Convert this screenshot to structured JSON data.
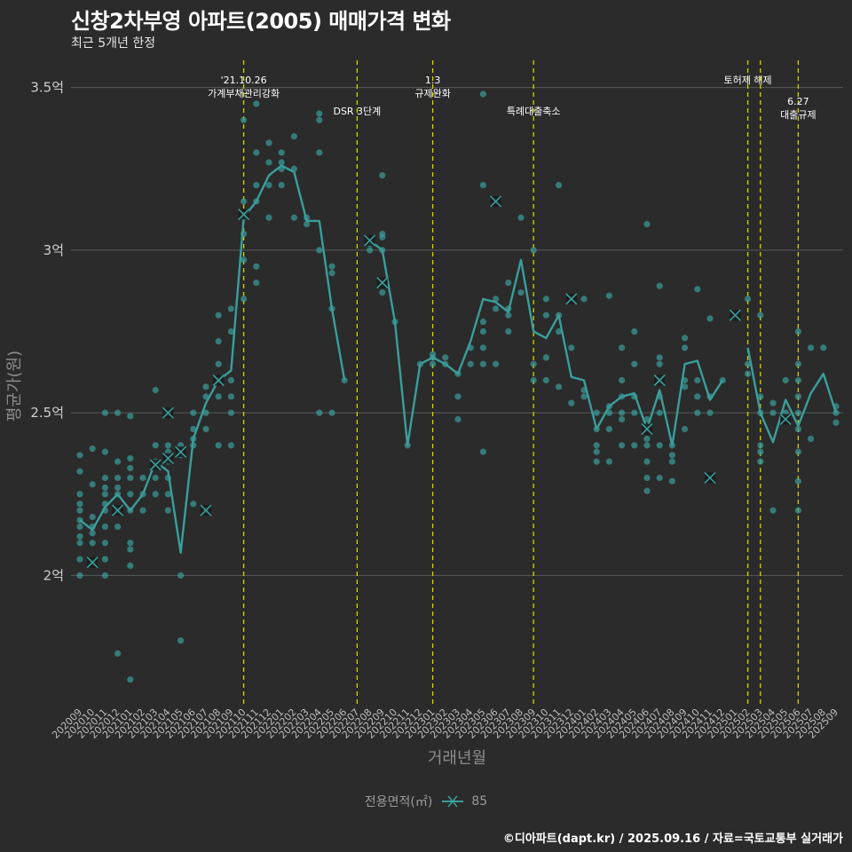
{
  "title": "신창2차부영 아파트(2005) 매매가격 변화",
  "subtitle": "최근 5개년 한정",
  "footer": "©디아파트(dapt.kr) / 2025.09.16 / 자료=국토교통부 실거래가",
  "legend": {
    "title": "전용면적(㎡)",
    "item": "85"
  },
  "colors": {
    "background": "#2b2b2b",
    "line": "#3a9e9b",
    "point": "#3a9e9b",
    "event_line": "#d4d400",
    "grid": "#5a5a5a"
  },
  "chart_data": {
    "type": "line",
    "xlabel": "거래년월",
    "ylabel": "평균가(원)",
    "ylim": [
      1.6,
      3.6
    ],
    "y_ticks": [
      {
        "value": 2.0,
        "label": "2억"
      },
      {
        "value": 2.5,
        "label": "2.5억"
      },
      {
        "value": 3.0,
        "label": "3억"
      },
      {
        "value": 3.5,
        "label": "3.5억"
      }
    ],
    "grid": true,
    "legend_position": "bottom",
    "categories": [
      "202009",
      "202010",
      "202011",
      "202012",
      "202101",
      "202102",
      "202103",
      "202104",
      "202105",
      "202106",
      "202107",
      "202108",
      "202109",
      "202110",
      "202111",
      "202112",
      "202201",
      "202202",
      "202203",
      "202204",
      "202205",
      "202206",
      "202207",
      "202208",
      "202209",
      "202210",
      "202211",
      "202212",
      "202301",
      "202302",
      "202303",
      "202304",
      "202305",
      "202306",
      "202307",
      "202308",
      "202309",
      "202310",
      "202311",
      "202312",
      "202401",
      "202402",
      "202403",
      "202404",
      "202405",
      "202406",
      "202407",
      "202408",
      "202409",
      "202410",
      "202411",
      "202412",
      "202501",
      "202502",
      "202503",
      "202504",
      "202505",
      "202506",
      "202507",
      "202508",
      "202509"
    ],
    "series": [
      {
        "name": "85",
        "values": [
          2.17,
          2.14,
          2.21,
          2.25,
          2.2,
          2.25,
          2.35,
          2.32,
          2.07,
          2.42,
          2.53,
          2.6,
          2.63,
          3.1,
          3.15,
          3.23,
          3.26,
          3.24,
          3.09,
          3.09,
          2.82,
          2.6,
          null,
          3.03,
          3.0,
          2.78,
          2.4,
          2.65,
          2.67,
          2.65,
          2.62,
          2.72,
          2.85,
          2.84,
          2.81,
          2.97,
          2.75,
          2.73,
          2.8,
          2.61,
          2.6,
          2.45,
          2.52,
          2.55,
          2.56,
          2.45,
          2.57,
          2.4,
          2.65,
          2.66,
          2.54,
          2.6,
          null,
          2.7,
          2.5,
          2.41,
          2.54,
          2.46,
          2.56,
          2.62,
          2.5
        ]
      }
    ],
    "scatter_points": [
      [
        0,
        2.0
      ],
      [
        0,
        2.05
      ],
      [
        0,
        2.1
      ],
      [
        0,
        2.12
      ],
      [
        0,
        2.15
      ],
      [
        0,
        2.17
      ],
      [
        0,
        2.2
      ],
      [
        0,
        2.22
      ],
      [
        0,
        2.25
      ],
      [
        0,
        2.32
      ],
      [
        0,
        2.37
      ],
      [
        1,
        2.04
      ],
      [
        1,
        2.1
      ],
      [
        1,
        2.13
      ],
      [
        1,
        2.15
      ],
      [
        1,
        2.18
      ],
      [
        1,
        2.28
      ],
      [
        1,
        2.39
      ],
      [
        2,
        2.0
      ],
      [
        2,
        2.05
      ],
      [
        2,
        2.1
      ],
      [
        2,
        2.15
      ],
      [
        2,
        2.2
      ],
      [
        2,
        2.22
      ],
      [
        2,
        2.25
      ],
      [
        2,
        2.27
      ],
      [
        2,
        2.3
      ],
      [
        2,
        2.38
      ],
      [
        2,
        2.5
      ],
      [
        3,
        1.76
      ],
      [
        3,
        2.15
      ],
      [
        3,
        2.2
      ],
      [
        3,
        2.25
      ],
      [
        3,
        2.27
      ],
      [
        3,
        2.3
      ],
      [
        3,
        2.35
      ],
      [
        3,
        2.5
      ],
      [
        4,
        1.68
      ],
      [
        4,
        2.03
      ],
      [
        4,
        2.08
      ],
      [
        4,
        2.1
      ],
      [
        4,
        2.2
      ],
      [
        4,
        2.25
      ],
      [
        4,
        2.3
      ],
      [
        4,
        2.33
      ],
      [
        4,
        2.36
      ],
      [
        4,
        2.49
      ],
      [
        5,
        2.2
      ],
      [
        5,
        2.25
      ],
      [
        5,
        2.3
      ],
      [
        6,
        2.25
      ],
      [
        6,
        2.3
      ],
      [
        6,
        2.35
      ],
      [
        6,
        2.4
      ],
      [
        6,
        2.57
      ],
      [
        7,
        2.2
      ],
      [
        7,
        2.25
      ],
      [
        7,
        2.3
      ],
      [
        7,
        2.35
      ],
      [
        7,
        2.38
      ],
      [
        7,
        2.4
      ],
      [
        7,
        2.5
      ],
      [
        8,
        1.8
      ],
      [
        8,
        2.0
      ],
      [
        8,
        2.37
      ],
      [
        8,
        2.4
      ],
      [
        9,
        2.22
      ],
      [
        9,
        2.4
      ],
      [
        9,
        2.42
      ],
      [
        9,
        2.45
      ],
      [
        9,
        2.5
      ],
      [
        10,
        2.2
      ],
      [
        10,
        2.45
      ],
      [
        10,
        2.5
      ],
      [
        10,
        2.55
      ],
      [
        10,
        2.58
      ],
      [
        11,
        2.4
      ],
      [
        11,
        2.55
      ],
      [
        11,
        2.6
      ],
      [
        11,
        2.65
      ],
      [
        11,
        2.72
      ],
      [
        11,
        2.8
      ],
      [
        12,
        2.4
      ],
      [
        12,
        2.5
      ],
      [
        12,
        2.55
      ],
      [
        12,
        2.6
      ],
      [
        12,
        2.75
      ],
      [
        12,
        2.82
      ],
      [
        13,
        2.85
      ],
      [
        13,
        2.97
      ],
      [
        13,
        3.05
      ],
      [
        13,
        3.1
      ],
      [
        13,
        3.15
      ],
      [
        13,
        3.4
      ],
      [
        14,
        2.9
      ],
      [
        14,
        2.95
      ],
      [
        14,
        3.15
      ],
      [
        14,
        3.2
      ],
      [
        14,
        3.3
      ],
      [
        14,
        3.45
      ],
      [
        15,
        3.1
      ],
      [
        15,
        3.2
      ],
      [
        15,
        3.27
      ],
      [
        15,
        3.33
      ],
      [
        16,
        3.2
      ],
      [
        16,
        3.25
      ],
      [
        16,
        3.27
      ],
      [
        16,
        3.3
      ],
      [
        17,
        3.1
      ],
      [
        17,
        3.25
      ],
      [
        17,
        3.35
      ],
      [
        18,
        3.08
      ],
      [
        18,
        3.1
      ],
      [
        19,
        2.5
      ],
      [
        19,
        3.0
      ],
      [
        19,
        3.3
      ],
      [
        19,
        3.4
      ],
      [
        19,
        3.42
      ],
      [
        20,
        2.5
      ],
      [
        20,
        2.82
      ],
      [
        20,
        2.93
      ],
      [
        20,
        2.95
      ],
      [
        21,
        2.6
      ],
      [
        23,
        3.0
      ],
      [
        23,
        3.02
      ],
      [
        24,
        2.87
      ],
      [
        24,
        2.9
      ],
      [
        24,
        3.0
      ],
      [
        24,
        3.04
      ],
      [
        24,
        3.05
      ],
      [
        24,
        3.23
      ],
      [
        25,
        2.78
      ],
      [
        26,
        2.4
      ],
      [
        27,
        2.65
      ],
      [
        28,
        2.65
      ],
      [
        28,
        2.67
      ],
      [
        28,
        2.68
      ],
      [
        29,
        2.65
      ],
      [
        29,
        2.67
      ],
      [
        30,
        2.48
      ],
      [
        30,
        2.55
      ],
      [
        30,
        2.62
      ],
      [
        31,
        2.65
      ],
      [
        31,
        2.7
      ],
      [
        32,
        2.38
      ],
      [
        32,
        2.65
      ],
      [
        32,
        2.7
      ],
      [
        32,
        2.75
      ],
      [
        32,
        2.78
      ],
      [
        32,
        3.2
      ],
      [
        32,
        3.48
      ],
      [
        33,
        2.65
      ],
      [
        33,
        2.82
      ],
      [
        33,
        2.85
      ],
      [
        34,
        2.75
      ],
      [
        34,
        2.8
      ],
      [
        34,
        2.82
      ],
      [
        34,
        2.9
      ],
      [
        35,
        2.87
      ],
      [
        35,
        3.1
      ],
      [
        36,
        2.6
      ],
      [
        36,
        2.65
      ],
      [
        36,
        3.0
      ],
      [
        37,
        2.6
      ],
      [
        37,
        2.67
      ],
      [
        37,
        2.8
      ],
      [
        37,
        2.85
      ],
      [
        38,
        2.58
      ],
      [
        38,
        2.75
      ],
      [
        38,
        2.8
      ],
      [
        38,
        3.2
      ],
      [
        39,
        2.53
      ],
      [
        39,
        2.7
      ],
      [
        40,
        2.55
      ],
      [
        40,
        2.57
      ],
      [
        40,
        2.85
      ],
      [
        41,
        2.35
      ],
      [
        41,
        2.38
      ],
      [
        41,
        2.4
      ],
      [
        41,
        2.45
      ],
      [
        41,
        2.5
      ],
      [
        42,
        2.35
      ],
      [
        42,
        2.45
      ],
      [
        42,
        2.5
      ],
      [
        42,
        2.52
      ],
      [
        42,
        2.86
      ],
      [
        43,
        2.4
      ],
      [
        43,
        2.48
      ],
      [
        43,
        2.5
      ],
      [
        43,
        2.55
      ],
      [
        43,
        2.6
      ],
      [
        43,
        2.7
      ],
      [
        44,
        2.4
      ],
      [
        44,
        2.5
      ],
      [
        44,
        2.55
      ],
      [
        44,
        2.65
      ],
      [
        44,
        2.75
      ],
      [
        45,
        2.26
      ],
      [
        45,
        2.3
      ],
      [
        45,
        2.35
      ],
      [
        45,
        2.4
      ],
      [
        45,
        2.42
      ],
      [
        45,
        2.45
      ],
      [
        45,
        2.48
      ],
      [
        45,
        3.08
      ],
      [
        46,
        2.3
      ],
      [
        46,
        2.4
      ],
      [
        46,
        2.5
      ],
      [
        46,
        2.55
      ],
      [
        46,
        2.6
      ],
      [
        46,
        2.65
      ],
      [
        46,
        2.67
      ],
      [
        46,
        2.89
      ],
      [
        47,
        2.29
      ],
      [
        47,
        2.35
      ],
      [
        47,
        2.37
      ],
      [
        47,
        2.4
      ],
      [
        48,
        2.45
      ],
      [
        48,
        2.58
      ],
      [
        48,
        2.6
      ],
      [
        48,
        2.7
      ],
      [
        48,
        2.73
      ],
      [
        49,
        2.5
      ],
      [
        49,
        2.55
      ],
      [
        49,
        2.6
      ],
      [
        49,
        2.88
      ],
      [
        50,
        2.5
      ],
      [
        50,
        2.55
      ],
      [
        50,
        2.79
      ],
      [
        51,
        2.6
      ],
      [
        53,
        2.62
      ],
      [
        53,
        2.65
      ],
      [
        53,
        2.85
      ],
      [
        54,
        2.35
      ],
      [
        54,
        2.38
      ],
      [
        54,
        2.4
      ],
      [
        54,
        2.5
      ],
      [
        54,
        2.55
      ],
      [
        54,
        2.8
      ],
      [
        55,
        2.2
      ],
      [
        55,
        2.5
      ],
      [
        55,
        2.53
      ],
      [
        56,
        2.5
      ],
      [
        56,
        2.6
      ],
      [
        57,
        2.2
      ],
      [
        57,
        2.29
      ],
      [
        57,
        2.38
      ],
      [
        57,
        2.45
      ],
      [
        57,
        2.5
      ],
      [
        57,
        2.55
      ],
      [
        57,
        2.6
      ],
      [
        57,
        2.65
      ],
      [
        57,
        2.75
      ],
      [
        58,
        2.42
      ],
      [
        58,
        2.7
      ],
      [
        59,
        2.7
      ],
      [
        60,
        2.47
      ],
      [
        60,
        2.5
      ],
      [
        60,
        2.52
      ]
    ],
    "x_markers": [
      [
        1,
        2.04
      ],
      [
        3,
        2.2
      ],
      [
        6,
        2.34
      ],
      [
        7,
        2.36
      ],
      [
        8,
        2.38
      ],
      [
        7,
        2.5
      ],
      [
        10,
        2.2
      ],
      [
        11,
        2.6
      ],
      [
        13,
        3.11
      ],
      [
        23,
        3.03
      ],
      [
        24,
        2.9
      ],
      [
        33,
        3.15
      ],
      [
        39,
        2.85
      ],
      [
        45,
        2.45
      ],
      [
        46,
        2.6
      ],
      [
        50,
        2.3
      ],
      [
        52,
        2.8
      ],
      [
        56,
        2.48
      ]
    ],
    "annotations": [
      {
        "index": 13,
        "lines": [
          "'21.10.26",
          "가계부채관리강화"
        ],
        "level": 0
      },
      {
        "index": 22,
        "lines": [
          "DSR 3단계"
        ],
        "level": 1
      },
      {
        "index": 28,
        "lines": [
          "1.3",
          "규제완화"
        ],
        "level": 0
      },
      {
        "index": 36,
        "lines": [
          "특례대출축소"
        ],
        "level": 1
      },
      {
        "index": 53,
        "lines": [
          "토허제 해제"
        ],
        "level": 0
      },
      {
        "index": 54,
        "lines": [],
        "level": 0
      },
      {
        "index": 57,
        "lines": [
          "6.27",
          "대출규제"
        ],
        "level": 2
      }
    ]
  }
}
